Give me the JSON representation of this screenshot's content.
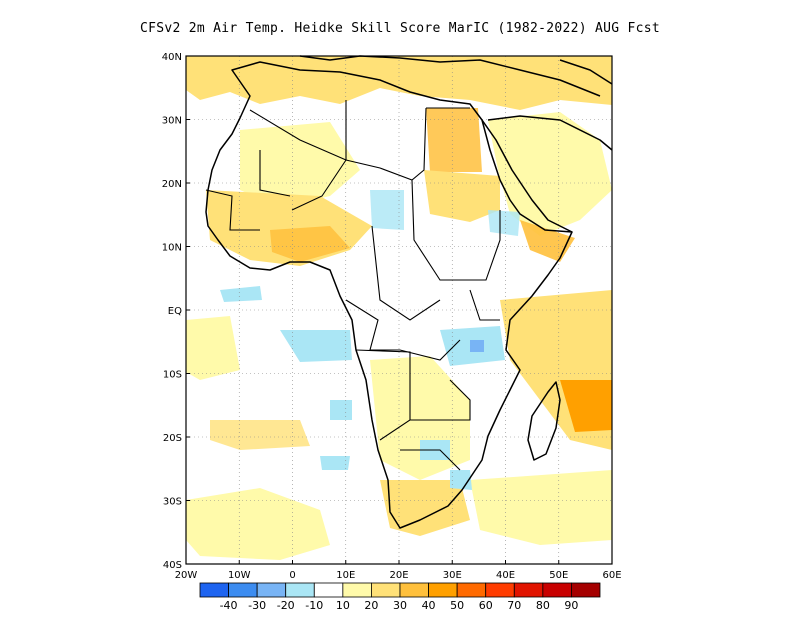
{
  "title": "CFSv2  2m Air Temp. Heidke Skill Score MarIC (1982-2022) AUG Fcst",
  "map": {
    "lon_range": [
      -20,
      60
    ],
    "lat_range": [
      -40,
      40
    ],
    "lon_labels": [
      "20W",
      "10W",
      "0",
      "10E",
      "20E",
      "30E",
      "40E",
      "50E",
      "60E"
    ],
    "lat_labels": [
      "40N",
      "30N",
      "20N",
      "10N",
      "EQ",
      "10S",
      "20S",
      "30S",
      "40S"
    ],
    "grid": "dotted"
  },
  "colorbar": {
    "labels": [
      "-40",
      "-30",
      "-20",
      "-10",
      "10",
      "20",
      "30",
      "40",
      "50",
      "60",
      "70",
      "80",
      "90"
    ],
    "colors": [
      "#1e64f0",
      "#3c8cf0",
      "#78b4f5",
      "#aae6f5",
      "#ffffff",
      "#fffaaa",
      "#ffe178",
      "#ffc03c",
      "#ffa000",
      "#ff6a00",
      "#ff3c00",
      "#e11400",
      "#c80000",
      "#a50000"
    ]
  }
}
